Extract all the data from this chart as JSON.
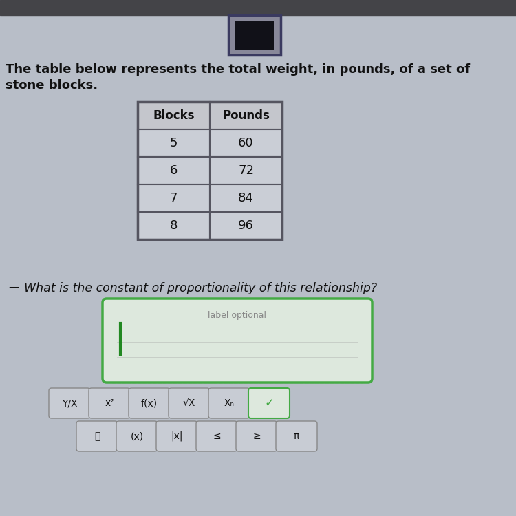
{
  "background_color": "#b8bec8",
  "top_bar_color": "#444448",
  "square_outer_color": "#3a3a60",
  "square_inner_color": "#111118",
  "problem_text_line1": "The table below represents the total weight, in pounds, of a set of",
  "problem_text_line2": "stone blocks.",
  "question_text": "What is the constant of proportionality of this relationship?",
  "table_headers": [
    "Blocks",
    "Pounds"
  ],
  "table_data": [
    [
      "5",
      "60"
    ],
    [
      "6",
      "72"
    ],
    [
      "7",
      "84"
    ],
    [
      "8",
      "96"
    ]
  ],
  "table_header_bg": "#c4c6cc",
  "table_row_bg": "#caced6",
  "table_border_color": "#555560",
  "input_box_border": "#44aa44",
  "input_box_bg": "#dde8dd",
  "input_label": "label optional",
  "input_label_color": "#888888",
  "input_cursor_color": "#228822",
  "button_bg": "#c8ccd4",
  "button_border": "#888888",
  "button_row1": [
    "Y/X",
    "x²",
    "f(x)",
    "√X",
    "Xₙ",
    "✓"
  ],
  "button_row2": [
    "🗑",
    "(x)",
    "|x|",
    "≤",
    "≥",
    "π"
  ],
  "check_color": "#44aa44",
  "text_color": "#111111"
}
